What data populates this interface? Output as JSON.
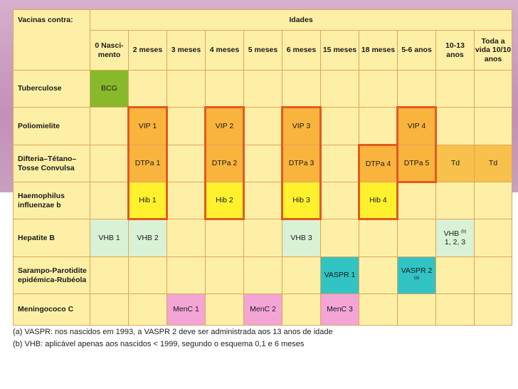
{
  "header": {
    "vacinas_label": "Vacinas contra:",
    "idades_label": "Idades",
    "ages": [
      "0 Nasci- mento",
      "2 meses",
      "3 meses",
      "4 meses",
      "5 meses",
      "6 meses",
      "15 meses",
      "18 meses",
      "5-6 anos",
      "10-13 anos",
      "Toda a vida 10/10 anos"
    ]
  },
  "rows": {
    "tuberculose": {
      "label": "Tuberculose",
      "bcg": "BCG"
    },
    "poliomielite": {
      "label": "Poliomielite",
      "vip1": "VIP 1",
      "vip2": "VIP 2",
      "vip3": "VIP 3",
      "vip4": "VIP 4"
    },
    "difteria": {
      "label": "Difteria–Tétano– Tosse Convulsa",
      "dtp1": "DTPa 1",
      "dtp2": "DTPa 2",
      "dtp3": "DTPa 3",
      "dtp4": "DTPa 4",
      "dtp5": "DTPa 5",
      "td1": "Td",
      "td2": "Td"
    },
    "haemophilus": {
      "label": "Haemophilus influenzae b",
      "hib1": "Hib 1",
      "hib2": "Hib 2",
      "hib3": "Hib 3",
      "hib4": "Hib 4"
    },
    "hepatite": {
      "label": "Hepatite B",
      "vhb1": "VHB 1",
      "vhb2": "VHB 2",
      "vhb3": "VHB 3",
      "vhb_adol": "VHB",
      "vhb_adol_sup": "(b)",
      "vhb_adol_doses": "1, 2, 3"
    },
    "sarampo": {
      "label": "Sarampo-Parotidite epidémica-Rubéola",
      "vaspr1": "VASPR 1",
      "vaspr2": "VASPR 2",
      "vaspr2_sup": "(a)"
    },
    "meningococo": {
      "label": "Meningococo C",
      "menc1": "MenC 1",
      "menc2": "MenC 2",
      "menc3": "MenC 3"
    }
  },
  "notes": {
    "a": "(a) VASPR: nos nascidos em 1993, a VASPR 2 deve ser administrada aos 13 anos de idade",
    "b": "(b) VHB: aplicável apenas aos nascidos < 1999, segundo o esquema 0,1 e 6 meses"
  },
  "colors": {
    "background": "#fdf0a6",
    "bcg": "#88b92a",
    "vip_dtp": "#f9b43e",
    "hib": "#fff12e",
    "vhb": "#d9f2d6",
    "vaspr": "#32c3c3",
    "menc": "#f3a5d5",
    "td": "#f7c14b"
  }
}
